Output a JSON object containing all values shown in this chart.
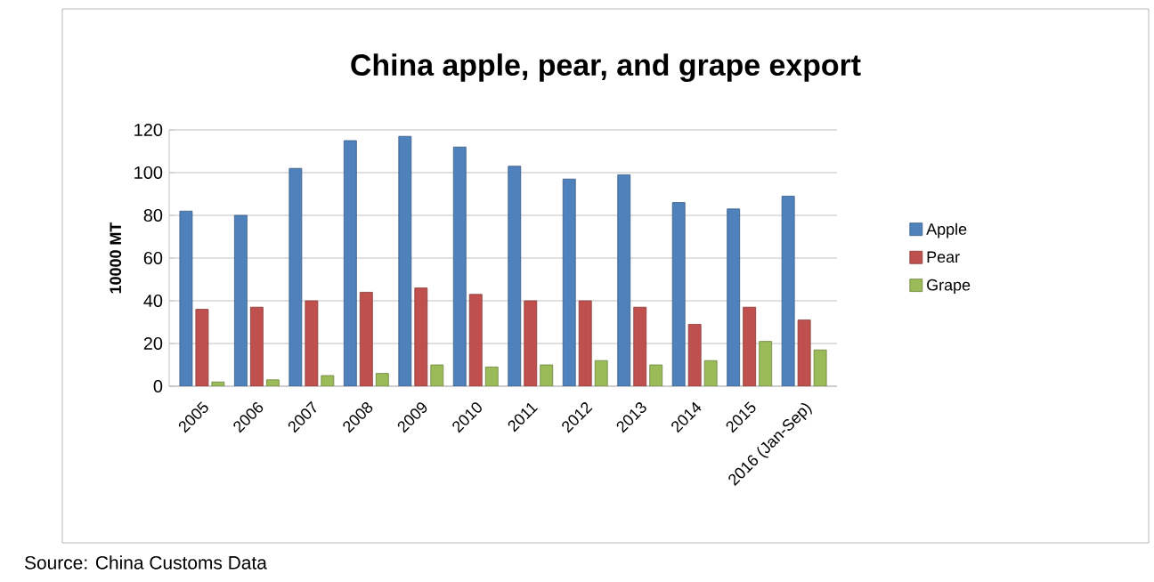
{
  "chart_data": {
    "type": "bar",
    "title": "China apple, pear, and grape export",
    "ylabel": "10000 MT",
    "categories": [
      "2005",
      "2006",
      "2007",
      "2008",
      "2009",
      "2010",
      "2011",
      "2012",
      "2013",
      "2014",
      "2015",
      "2016 (Jan-Sep)"
    ],
    "series": [
      {
        "name": "Apple",
        "color": "#4f81bd",
        "values": [
          82,
          80,
          102,
          115,
          117,
          112,
          103,
          97,
          99,
          86,
          83,
          89
        ]
      },
      {
        "name": "Pear",
        "color": "#c0504d",
        "values": [
          36,
          37,
          40,
          44,
          46,
          43,
          40,
          40,
          37,
          29,
          37,
          31
        ]
      },
      {
        "name": "Grape",
        "color": "#9bbb59",
        "values": [
          2,
          3,
          5,
          6,
          10,
          9,
          10,
          12,
          10,
          12,
          21,
          17
        ]
      }
    ],
    "ylim": [
      0,
      120
    ],
    "yticks": [
      0,
      20,
      40,
      60,
      80,
      100,
      120
    ],
    "grid": "y",
    "legend": "right",
    "annotations": [
      "Source: China Customs Data"
    ]
  }
}
